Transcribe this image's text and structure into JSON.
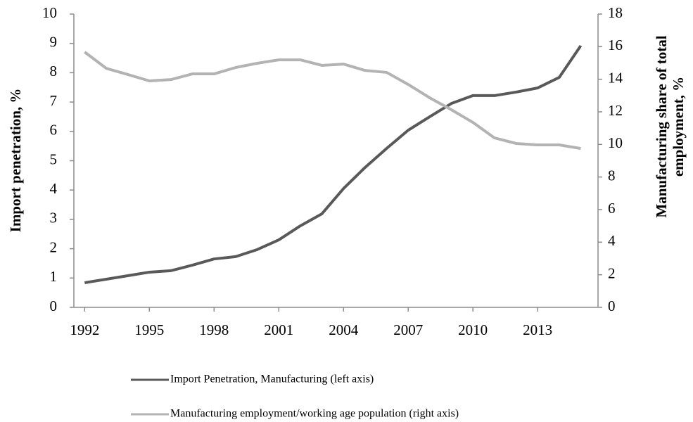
{
  "chart_data": {
    "type": "line",
    "x": [
      1992,
      1993,
      1994,
      1995,
      1996,
      1997,
      1998,
      1999,
      2000,
      2001,
      2002,
      2003,
      2004,
      2005,
      2006,
      2007,
      2008,
      2009,
      2010,
      2011,
      2012,
      2013,
      2014,
      2015
    ],
    "series": [
      {
        "name": "Import Penetration, Manufacturing (left axis)",
        "color": "#595959",
        "values": [
          0.84,
          0.96,
          1.08,
          1.2,
          1.25,
          1.44,
          1.65,
          1.73,
          1.97,
          2.3,
          2.78,
          3.19,
          4.05,
          4.77,
          5.42,
          6.04,
          6.5,
          6.95,
          7.22,
          7.22,
          7.34,
          7.48,
          7.84,
          8.92
        ]
      },
      {
        "name": "Manufacturing employment/working age population (right axis)",
        "color": "#b3b3b3",
        "axis": "y2",
        "values": [
          15.67,
          14.67,
          14.29,
          13.9,
          13.98,
          14.33,
          14.33,
          14.72,
          14.98,
          15.19,
          15.19,
          14.85,
          14.93,
          14.54,
          14.42,
          13.68,
          12.86,
          12.13,
          11.35,
          10.4,
          10.06,
          9.97,
          9.97,
          9.75
        ]
      }
    ],
    "ylabel": "Import penetration, %",
    "y2label": [
      "Manufacturing share of total",
      "employment, %"
    ],
    "xlim": [
      1991.5,
      2015.8
    ],
    "xticks": [
      1992,
      1995,
      1998,
      2001,
      2004,
      2007,
      2010,
      2013
    ],
    "ylim": [
      0,
      10
    ],
    "yticks": [
      0,
      1,
      2,
      3,
      4,
      5,
      6,
      7,
      8,
      9,
      10
    ],
    "y2lim": [
      0,
      18
    ],
    "y2ticks": [
      0,
      2,
      4,
      6,
      8,
      10,
      12,
      14,
      16,
      18
    ],
    "axis_color": "#8c8c8c"
  }
}
